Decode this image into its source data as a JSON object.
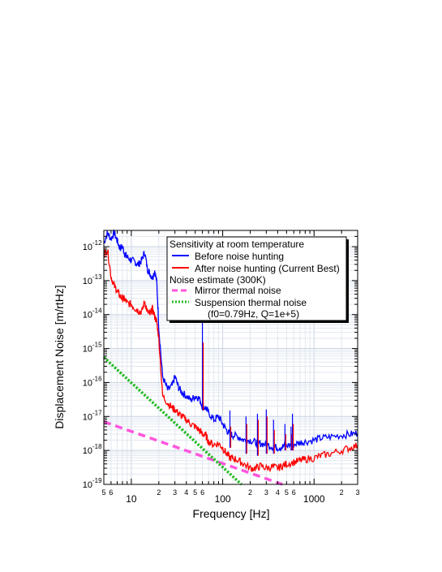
{
  "chart_data": {
    "type": "line",
    "xlabel": "Frequency [Hz]",
    "ylabel": "Displacement Noise [m/rtHz]",
    "xscale": "log",
    "yscale": "log",
    "xlim": [
      5,
      3000
    ],
    "ylim": [
      1e-19,
      3e-12
    ],
    "grid": true,
    "legend_placement": "top-right",
    "x_ticks_major": [
      {
        "value": 10,
        "label": "10"
      },
      {
        "value": 100,
        "label": "100"
      },
      {
        "value": 1000,
        "label": "1000"
      }
    ],
    "x_ticks_minor": [
      {
        "value": 5,
        "label": "5"
      },
      {
        "value": 6,
        "label": "6"
      },
      {
        "value": 20,
        "label": "2"
      },
      {
        "value": 30,
        "label": "3"
      },
      {
        "value": 40,
        "label": "4"
      },
      {
        "value": 50,
        "label": "5"
      },
      {
        "value": 60,
        "label": "6"
      },
      {
        "value": 200,
        "label": "2"
      },
      {
        "value": 300,
        "label": "3"
      },
      {
        "value": 400,
        "label": "4"
      },
      {
        "value": 500,
        "label": "5"
      },
      {
        "value": 600,
        "label": "6"
      },
      {
        "value": 2000,
        "label": "2"
      },
      {
        "value": 3000,
        "label": "3"
      }
    ],
    "y_ticks": [
      {
        "value": 1e-19,
        "base": "10",
        "exp": "-19"
      },
      {
        "value": 1e-18,
        "base": "10",
        "exp": "-18"
      },
      {
        "value": 1e-17,
        "base": "10",
        "exp": "-17"
      },
      {
        "value": 1e-16,
        "base": "10",
        "exp": "-16"
      },
      {
        "value": 1e-15,
        "base": "10",
        "exp": "-15"
      },
      {
        "value": 1e-14,
        "base": "10",
        "exp": "-14"
      },
      {
        "value": 1e-13,
        "base": "10",
        "exp": "-13"
      },
      {
        "value": 1e-12,
        "base": "10",
        "exp": "-12"
      }
    ],
    "legend": {
      "heading": "Sensitivity at room temperature",
      "subheading": "Noise estimate (300K)",
      "suspension_note": "(f0=0.79Hz, Q=1e+5)"
    },
    "series": [
      {
        "name": "Before noise hunting",
        "color": "#0000ff",
        "style": "solid",
        "x": [
          5,
          5.5,
          6,
          6.5,
          7,
          7.5,
          8,
          8.5,
          9,
          10,
          11,
          12,
          13,
          14,
          15,
          16,
          17,
          18,
          19,
          20,
          22,
          25,
          28,
          30,
          33,
          36,
          40,
          45,
          50,
          55,
          60,
          65,
          70,
          80,
          90,
          100,
          110,
          120,
          130,
          150,
          170,
          200,
          230,
          260,
          300,
          350,
          400,
          450,
          500,
          600,
          700,
          800,
          1000,
          1200,
          1500,
          2000,
          2500,
          3000
        ],
        "y": [
          1.3e-12,
          2.5e-12,
          1.7e-12,
          2.6e-12,
          1.5e-12,
          9e-13,
          1e-12,
          6e-13,
          5e-13,
          4e-13,
          3.5e-13,
          3e-13,
          4e-13,
          7e-13,
          2.2e-13,
          1.6e-13,
          1.2e-13,
          2e-13,
          9e-14,
          4e-15,
          1.5e-16,
          6e-17,
          8e-17,
          1.5e-16,
          7e-17,
          5e-17,
          4e-17,
          3e-17,
          4e-17,
          3.5e-17,
          2e-17,
          1.8e-17,
          1.3e-17,
          8e-18,
          1e-17,
          6e-18,
          4e-18,
          3e-18,
          2.8e-18,
          2.5e-18,
          2e-18,
          2e-18,
          1.7e-18,
          1.6e-18,
          1.5e-18,
          1.3e-18,
          1.2e-18,
          1.3e-18,
          1.4e-18,
          1.5e-18,
          1.7e-18,
          1.8e-18,
          2e-18,
          2.3e-18,
          2.5e-18,
          2.8e-18,
          3e-18,
          3.2e-18
        ]
      },
      {
        "name": "After noise hunting (Current Best)",
        "color": "#ff0000",
        "style": "solid",
        "x": [
          5,
          5.5,
          6,
          6.5,
          7,
          7.5,
          8,
          8.5,
          9,
          10,
          11,
          12,
          13,
          14,
          15,
          16,
          17,
          18,
          19,
          20,
          22,
          25,
          28,
          30,
          33,
          36,
          40,
          45,
          50,
          55,
          60,
          65,
          70,
          80,
          90,
          100,
          110,
          120,
          130,
          150,
          170,
          200,
          230,
          260,
          300,
          350,
          400,
          450,
          500,
          600,
          700,
          800,
          1000,
          1200,
          1500,
          2000,
          2500,
          3000
        ],
        "y": [
          6e-13,
          8e-13,
          1.3e-13,
          7e-14,
          5e-14,
          3.5e-14,
          3e-14,
          2.8e-14,
          2.2e-14,
          2e-14,
          1.5e-14,
          1.3e-14,
          1.2e-14,
          2.5e-14,
          1.2e-14,
          1e-14,
          1.5e-14,
          9e-15,
          6e-15,
          2e-15,
          4e-17,
          2.5e-17,
          1.8e-17,
          1.6e-17,
          1.2e-17,
          1e-17,
          8e-18,
          6e-18,
          5e-18,
          4e-18,
          3e-18,
          2.8e-18,
          1.8e-18,
          1.5e-18,
          1.6e-18,
          1.2e-18,
          8e-19,
          6e-19,
          6e-19,
          5e-19,
          4e-19,
          3e-19,
          3e-19,
          3.5e-19,
          3e-19,
          3.3e-19,
          3e-19,
          3.5e-19,
          4e-19,
          4.5e-19,
          5e-19,
          5.5e-19,
          6e-19,
          7e-19,
          8e-19,
          1e-18,
          1.2e-18,
          1.4e-18
        ]
      },
      {
        "name": "Mirror thermal noise",
        "color": "#ff55dd",
        "style": "dashed",
        "x": [
          5,
          450
        ],
        "y": [
          7e-18,
          1e-19
        ]
      },
      {
        "name": "Suspension thermal noise",
        "color": "#22bb22",
        "style": "dotted",
        "x": [
          5,
          160
        ],
        "y": [
          5.5e-16,
          1e-19
        ]
      }
    ],
    "spikes": [
      {
        "x": 60,
        "blue_peak": 5e-14,
        "red_peak": 1.5e-15,
        "base": 1.5e-17
      },
      {
        "x": 120,
        "blue_peak": 1.5e-17,
        "red_peak": 5e-18,
        "base": 1.2e-18
      },
      {
        "x": 180,
        "blue_peak": 1e-17,
        "red_peak": 6e-18,
        "base": 8e-19
      },
      {
        "x": 240,
        "blue_peak": 1.2e-17,
        "red_peak": 8e-18,
        "base": 7e-19
      },
      {
        "x": 300,
        "blue_peak": 1.6e-17,
        "red_peak": 1e-17,
        "base": 8e-19
      },
      {
        "x": 360,
        "blue_peak": 8e-18,
        "red_peak": 4e-18,
        "base": 8e-19
      },
      {
        "x": 480,
        "blue_peak": 6e-18,
        "red_peak": 3e-18,
        "base": 1e-18
      },
      {
        "x": 560,
        "blue_peak": 5e-18,
        "red_peak": 3e-18,
        "base": 1e-18
      },
      {
        "x": 580,
        "blue_peak": 1.2e-17,
        "red_peak": 6e-18,
        "base": 1e-18
      }
    ]
  }
}
